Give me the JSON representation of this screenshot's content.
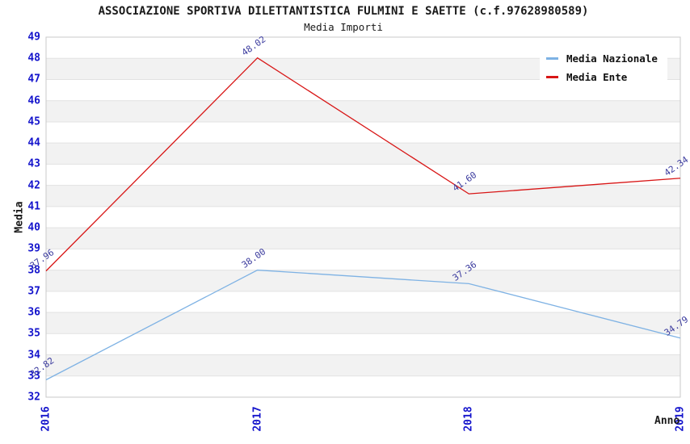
{
  "page": {
    "background": "#ffffff"
  },
  "chart_data": {
    "type": "line",
    "title": "ASSOCIAZIONE SPORTIVA DILETTANTISTICA FULMINI E SAETTE (c.f.97628980589)",
    "subtitle": "Media Importi",
    "xlabel": "Anno",
    "ylabel": "Media",
    "categories": [
      "2016",
      "2017",
      "2018",
      "2019"
    ],
    "series": [
      {
        "name": "Media Nazionale",
        "color": "#7EB2E4",
        "values": [
          32.82,
          38.0,
          37.36,
          34.79
        ],
        "point_labels": [
          "32.82",
          "38.00",
          "37.36",
          "34.79"
        ]
      },
      {
        "name": "Media Ente",
        "color": "#D81616",
        "values": [
          37.96,
          48.02,
          41.6,
          42.34
        ],
        "point_labels": [
          "37.96",
          "48.02",
          "41.60",
          "42.34"
        ]
      }
    ],
    "ylim": [
      32,
      49
    ],
    "ytick_step": 1,
    "grid": true,
    "legend_position": "top-right",
    "styles": {
      "tick_label_color": "#1414CC",
      "point_label_color": "#3B3B9E",
      "band_color": "#F2F2F2",
      "gridline_color": "#E2E2E2",
      "plot_border_color": "#C9C9C9"
    }
  }
}
